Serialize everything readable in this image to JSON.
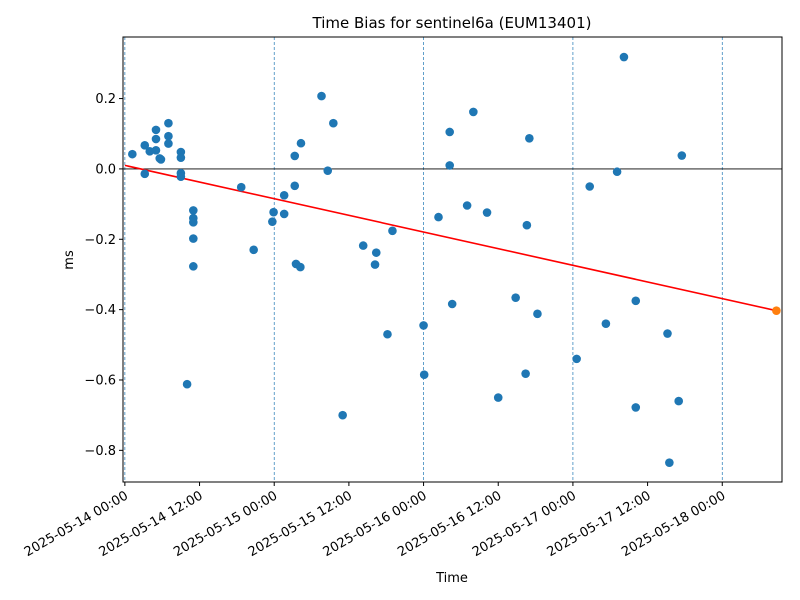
{
  "chart_data": {
    "type": "scatter",
    "title": "Time Bias for sentinel6a (EUM13401)",
    "xlabel": "Time",
    "ylabel": "ms",
    "x_tick_labels": [
      "2025-05-14 00:00",
      "2025-05-14 12:00",
      "2025-05-15 00:00",
      "2025-05-15 12:00",
      "2025-05-16 00:00",
      "2025-05-16 12:00",
      "2025-05-17 00:00",
      "2025-05-17 12:00",
      "2025-05-18 00:00"
    ],
    "x_tick_hours": [
      0,
      12,
      24,
      36,
      48,
      60,
      72,
      84,
      96
    ],
    "y_ticks": [
      -0.8,
      -0.6,
      -0.4,
      -0.2,
      0.0,
      0.2
    ],
    "y_tick_labels": [
      "−0.8",
      "−0.6",
      "−0.4",
      "−0.2",
      "0.0",
      "0.2"
    ],
    "xlim_hours": [
      -0.3,
      105.6
    ],
    "ylim": [
      -0.89,
      0.375
    ],
    "day_gridlines_hours": [
      0,
      24,
      48,
      72,
      96
    ],
    "zero_line": true,
    "colors": {
      "points": "#1f77b4",
      "fit": "#ff0000",
      "predicted": "#ff7f0e",
      "gridline": "#1f77b4",
      "zero": "#000000"
    },
    "points_hours": [
      [
        1.2,
        0.042
      ],
      [
        3.2,
        0.067
      ],
      [
        3.2,
        -0.014
      ],
      [
        4.0,
        0.05
      ],
      [
        5.0,
        0.111
      ],
      [
        5.0,
        0.085
      ],
      [
        5.0,
        0.053
      ],
      [
        5.8,
        0.027
      ],
      [
        5.6,
        0.03
      ],
      [
        7.0,
        0.13
      ],
      [
        7.0,
        0.093
      ],
      [
        7.0,
        0.072
      ],
      [
        9.0,
        0.048
      ],
      [
        9.0,
        0.032
      ],
      [
        9.0,
        -0.012
      ],
      [
        9.0,
        -0.022
      ],
      [
        10.0,
        -0.612
      ],
      [
        11.0,
        -0.118
      ],
      [
        11.0,
        -0.14
      ],
      [
        11.0,
        -0.152
      ],
      [
        11.0,
        -0.198
      ],
      [
        11.0,
        -0.277
      ],
      [
        18.7,
        -0.052
      ],
      [
        20.7,
        -0.23
      ],
      [
        23.7,
        -0.15
      ],
      [
        23.9,
        -0.123
      ],
      [
        25.6,
        -0.075
      ],
      [
        25.6,
        -0.128
      ],
      [
        27.3,
        -0.048
      ],
      [
        27.3,
        0.037
      ],
      [
        27.5,
        -0.27
      ],
      [
        28.2,
        -0.279
      ],
      [
        28.3,
        0.073
      ],
      [
        31.6,
        0.207
      ],
      [
        32.6,
        -0.005
      ],
      [
        33.5,
        0.13
      ],
      [
        35.0,
        -0.7
      ],
      [
        38.3,
        -0.218
      ],
      [
        40.2,
        -0.272
      ],
      [
        40.4,
        -0.238
      ],
      [
        42.2,
        -0.47
      ],
      [
        43.0,
        -0.176
      ],
      [
        48.0,
        -0.445
      ],
      [
        48.1,
        -0.585
      ],
      [
        50.4,
        -0.137
      ],
      [
        52.2,
        0.105
      ],
      [
        52.2,
        0.01
      ],
      [
        52.6,
        -0.384
      ],
      [
        55.0,
        -0.104
      ],
      [
        56.0,
        0.162
      ],
      [
        58.2,
        -0.124
      ],
      [
        60.0,
        -0.65
      ],
      [
        62.8,
        -0.366
      ],
      [
        64.4,
        -0.582
      ],
      [
        64.6,
        -0.16
      ],
      [
        65.0,
        0.087
      ],
      [
        66.3,
        -0.412
      ],
      [
        72.6,
        -0.54
      ],
      [
        74.7,
        -0.05
      ],
      [
        77.3,
        -0.44
      ],
      [
        79.1,
        -0.008
      ],
      [
        80.2,
        0.318
      ],
      [
        82.1,
        -0.375
      ],
      [
        82.1,
        -0.678
      ],
      [
        87.2,
        -0.468
      ],
      [
        87.5,
        -0.835
      ],
      [
        89.0,
        -0.66
      ],
      [
        89.5,
        0.038
      ]
    ],
    "fit_line": {
      "start": [
        0.0,
        0.01
      ],
      "end": [
        104.7,
        -0.403
      ]
    },
    "predicted_point": [
      104.7,
      -0.403
    ]
  }
}
